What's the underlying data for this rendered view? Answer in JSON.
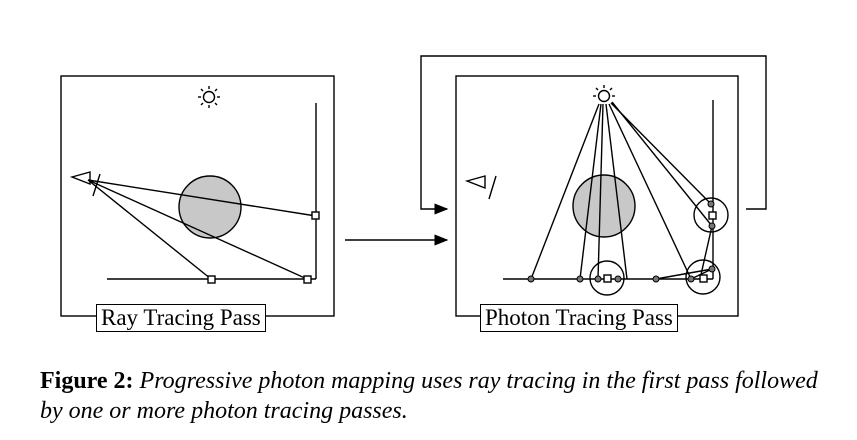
{
  "panels": {
    "left_label": "Ray Tracing Pass",
    "right_label": "Photon Tracing Pass"
  },
  "caption": {
    "prefix": "Figure 2:",
    "text": "Progressive photon mapping uses ray tracing in the first pass followed by one or more photon tracing passes."
  },
  "colors": {
    "sphere_fill": "#c8c8c8",
    "stroke": "#000000",
    "point_fill": "#777777"
  },
  "icons": [
    "light-source-icon",
    "camera-eye-icon"
  ]
}
